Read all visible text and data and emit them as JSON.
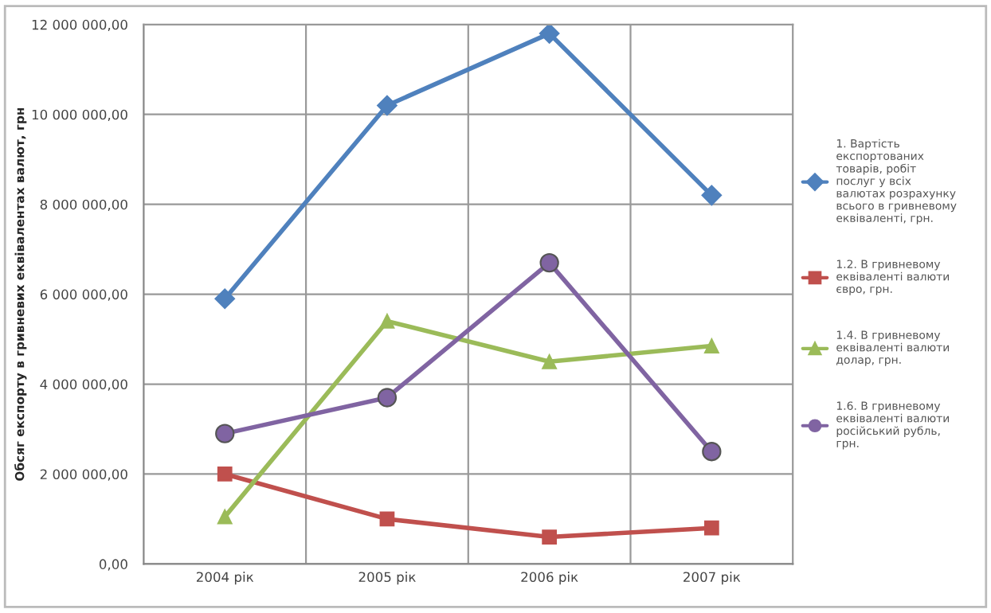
{
  "chart_data": {
    "type": "line",
    "ylabel": "Обсяг експорту в гривневих еквівалентах валют, грн",
    "categories": [
      "2004 рік",
      "2005 рік",
      "2006 рік",
      "2007 рік"
    ],
    "series": [
      {
        "name": "1. Вартість експортованих товарів, робіт послуг у всіх валютах розрахунку всього в гривневому еквіваленті, грн.",
        "color": "#4f81bd",
        "marker": "diamond",
        "values": [
          5900000,
          10200000,
          11800000,
          8200000
        ]
      },
      {
        "name": "1.2. В гривневому еквіваленті валюти євро, грн.",
        "color": "#c0504d",
        "marker": "square",
        "values": [
          2000000,
          1000000,
          600000,
          800000
        ]
      },
      {
        "name": "1.4. В гривневому еквіваленті валюти долар, грн.",
        "color": "#9bbb59",
        "marker": "triangle",
        "values": [
          1050000,
          5400000,
          4500000,
          4850000
        ]
      },
      {
        "name": "1.6. В гривневому еквіваленті валюти російський рубль, грн.",
        "color": "#8064a2",
        "marker": "circle",
        "values": [
          2900000,
          3700000,
          6700000,
          2500000
        ]
      }
    ],
    "ylim": [
      0,
      12000000
    ],
    "yticks": [
      {
        "value": 0,
        "label": "0,00"
      },
      {
        "value": 2000000,
        "label": "2 000 000,00"
      },
      {
        "value": 4000000,
        "label": "4 000 000,00"
      },
      {
        "value": 6000000,
        "label": "6 000 000,00"
      },
      {
        "value": 8000000,
        "label": "8 000 000,00"
      },
      {
        "value": 10000000,
        "label": "10 000 000,00"
      },
      {
        "value": 12000000,
        "label": "12 000 000,00"
      }
    ],
    "grid": true,
    "legend": "right",
    "line_style": "solid"
  }
}
